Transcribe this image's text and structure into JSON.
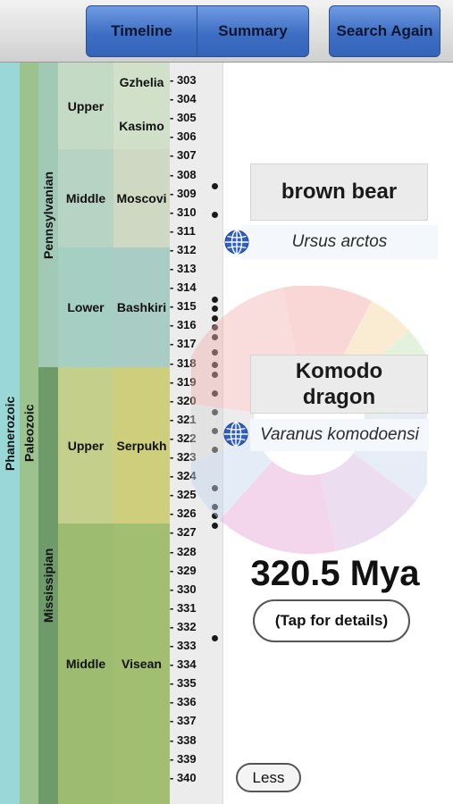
{
  "toolbar": {
    "timeline_label": "Timeline",
    "summary_label": "Summary",
    "search_again_label": "Search Again"
  },
  "timescale": {
    "eon": "Phanerozoic",
    "era": "Paleozoic",
    "subperiods": {
      "pennsylvanian": "Pennsylvanian",
      "mississipian": "Mississipian"
    },
    "epochs": {
      "upper_penn": "Upper",
      "middle_penn": "Middle",
      "lower_penn": "Lower",
      "upper_miss": "Upper",
      "middle_miss": "Middle"
    },
    "stages": {
      "gzhelian": "Gzhelia",
      "kasimovian": "Kasimo",
      "moscovian": "Moscovi",
      "bashkirian": "Bashkiri",
      "serpukhovian": "Serpukh",
      "visean": "Visean"
    },
    "ticks": [
      "- 303",
      "- 304",
      "- 305",
      "- 306",
      "- 307",
      "- 308",
      "- 309",
      "- 310",
      "- 311",
      "- 312",
      "- 313",
      "- 314",
      "- 315",
      "- 316",
      "- 317",
      "- 318",
      "- 319",
      "- 320",
      "- 321",
      "- 322",
      "- 323",
      "- 324",
      "- 325",
      "- 326",
      "- 327",
      "- 328",
      "- 329",
      "- 330",
      "- 331",
      "- 332",
      "- 333",
      "- 334",
      "- 335",
      "- 336",
      "- 337",
      "- 338",
      "- 339",
      "- 340"
    ],
    "colors": {
      "eon": "#9ad8d8",
      "era": "#9cc38e",
      "pennsylvanian": "#a2c8b6",
      "mississipian": "#6f9a6a",
      "upper_penn": "#c5dac4",
      "middle_penn": "#b7d3c3",
      "lower_penn": "#a5cfc3",
      "upper_miss": "#c3cf8a",
      "middle_miss": "#9dbc6f",
      "gzhelian": "#d0e0c9",
      "moscovian": "#cfd8c3",
      "bashkirian": "#a9cdc5",
      "serpukhovian": "#cfce7c",
      "visean": "#a2bf71"
    }
  },
  "result": {
    "species1": {
      "common": "brown bear",
      "latin": "Ursus arctos"
    },
    "species2": {
      "common": "Komodo dragon",
      "latin": "Varanus komodoensi"
    },
    "divergence": "320.5 Mya",
    "details_label": "(Tap for details)",
    "less_label": "Less"
  }
}
